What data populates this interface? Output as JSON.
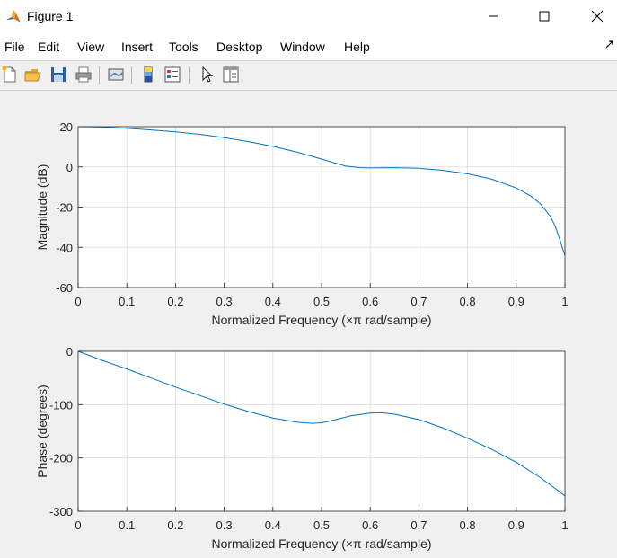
{
  "window": {
    "title": "Figure 1"
  },
  "menu": [
    "File",
    "Edit",
    "View",
    "Insert",
    "Tools",
    "Desktop",
    "Window",
    "Help"
  ],
  "toolbar": {
    "buttons": [
      "new-figure",
      "open-file",
      "save-figure",
      "print-figure",
      "link-plot",
      "insert-colorbar",
      "insert-legend",
      "edit-plot",
      "property-inspector"
    ]
  },
  "colors": {
    "series": "#0072bd",
    "grid": "#dcdcdc",
    "axes": "#262626"
  },
  "chart_data": [
    {
      "type": "line",
      "xlabel": "Normalized Frequency  (×π rad/sample)",
      "ylabel": "Magnitude (dB)",
      "xlim": [
        0,
        1
      ],
      "ylim": [
        -60,
        20
      ],
      "xticks": [
        "0",
        "0.1",
        "0.2",
        "0.3",
        "0.4",
        "0.5",
        "0.6",
        "0.7",
        "0.8",
        "0.9",
        "1"
      ],
      "yticks": [
        "-60",
        "-40",
        "-20",
        "0",
        "20"
      ],
      "grid": true,
      "x": [
        0,
        0.05,
        0.1,
        0.15,
        0.2,
        0.25,
        0.3,
        0.35,
        0.4,
        0.45,
        0.5,
        0.53,
        0.55,
        0.58,
        0.6,
        0.65,
        0.7,
        0.75,
        0.8,
        0.85,
        0.9,
        0.93,
        0.95,
        0.97,
        0.98,
        0.99,
        0.995,
        1
      ],
      "y": [
        20,
        19.8,
        19.2,
        18.4,
        17.4,
        16.2,
        14.6,
        12.6,
        10.2,
        7.3,
        3.9,
        1.7,
        0.4,
        -0.4,
        -0.5,
        -0.4,
        -0.7,
        -1.7,
        -3.4,
        -6.1,
        -10.5,
        -14.5,
        -18.5,
        -24.5,
        -29.5,
        -36.5,
        -40.5,
        -44
      ]
    },
    {
      "type": "line",
      "xlabel": "Normalized Frequency  (×π rad/sample)",
      "ylabel": "Phase (degrees)",
      "xlim": [
        0,
        1
      ],
      "ylim": [
        -300,
        0
      ],
      "xticks": [
        "0",
        "0.1",
        "0.2",
        "0.3",
        "0.4",
        "0.5",
        "0.6",
        "0.7",
        "0.8",
        "0.9",
        "1"
      ],
      "yticks": [
        "-300",
        "-200",
        "-100",
        "0"
      ],
      "grid": true,
      "x": [
        0,
        0.05,
        0.1,
        0.15,
        0.2,
        0.25,
        0.3,
        0.35,
        0.4,
        0.45,
        0.48,
        0.5,
        0.53,
        0.56,
        0.6,
        0.62,
        0.65,
        0.7,
        0.75,
        0.8,
        0.85,
        0.9,
        0.95,
        1
      ],
      "y": [
        0,
        -17,
        -33,
        -50,
        -67,
        -83,
        -99,
        -113,
        -125,
        -133,
        -135,
        -134,
        -128,
        -121,
        -116,
        -115,
        -118,
        -128,
        -144,
        -163,
        -184,
        -208,
        -237,
        -271
      ]
    }
  ]
}
